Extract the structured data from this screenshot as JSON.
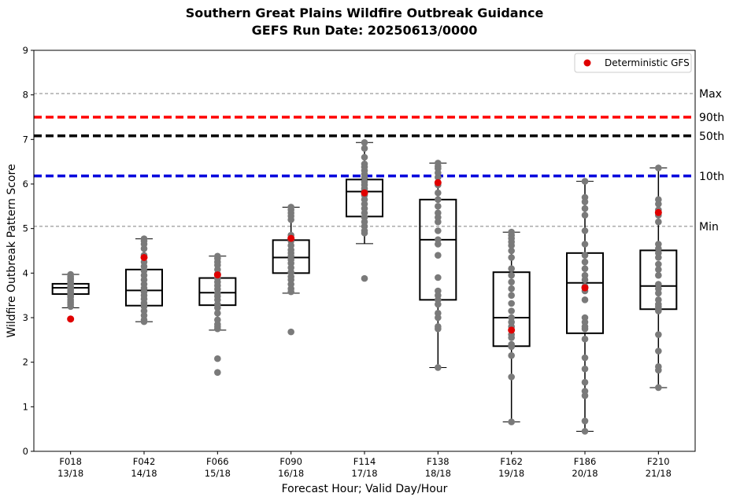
{
  "chart_data": {
    "type": "box",
    "title_line1": "Southern Great Plains Wildfire Outbreak Guidance",
    "title_line2": "GEFS Run Date: 20250613/0000",
    "xlabel": "Forecast Hour; Valid Day/Hour",
    "ylabel": "Wildfire Outbreak Pattern Score",
    "ylim": [
      0,
      9
    ],
    "yticks": [
      "0",
      "1",
      "2",
      "3",
      "4",
      "5",
      "6",
      "7",
      "8",
      "9"
    ],
    "grid": false,
    "legend": {
      "placement": "top-right",
      "entries": [
        {
          "label": "Deterministic GFS",
          "color": "#e00000"
        }
      ]
    },
    "categories": [
      {
        "hour": "F018",
        "valid": "13/18"
      },
      {
        "hour": "F042",
        "valid": "14/18"
      },
      {
        "hour": "F066",
        "valid": "15/18"
      },
      {
        "hour": "F090",
        "valid": "16/18"
      },
      {
        "hour": "F114",
        "valid": "17/18"
      },
      {
        "hour": "F138",
        "valid": "18/18"
      },
      {
        "hour": "F162",
        "valid": "19/18"
      },
      {
        "hour": "F186",
        "valid": "20/18"
      },
      {
        "hour": "F210",
        "valid": "21/18"
      }
    ],
    "reference_lines": [
      {
        "label": "Max",
        "value": 8.03,
        "color": "#808080",
        "style": "thin-dashed"
      },
      {
        "label": "90th",
        "value": 7.5,
        "color": "#ff0000",
        "style": "thick-dashed"
      },
      {
        "label": "50th",
        "value": 7.08,
        "color": "#000000",
        "style": "thick-dashed"
      },
      {
        "label": "10th",
        "value": 6.18,
        "color": "#0000dd",
        "style": "thick-dashed"
      },
      {
        "label": "Min",
        "value": 5.05,
        "color": "#808080",
        "style": "thin-dashed"
      }
    ],
    "boxes": [
      {
        "q1": 3.53,
        "median": 3.67,
        "q3": 3.76,
        "whisker_low": 3.22,
        "whisker_high": 3.97,
        "gfs": 2.97,
        "members": [
          3.97,
          3.92,
          3.88,
          3.85,
          3.8,
          3.75,
          3.7,
          3.66,
          3.62,
          3.58,
          3.55,
          3.5,
          3.46,
          3.4,
          3.35,
          3.3,
          3.25
        ]
      },
      {
        "q1": 3.27,
        "median": 3.61,
        "q3": 4.08,
        "whisker_low": 2.91,
        "whisker_high": 4.77,
        "gfs": 4.35,
        "members": [
          4.77,
          4.72,
          4.65,
          4.55,
          4.4,
          4.25,
          4.15,
          4.05,
          3.95,
          3.85,
          3.75,
          3.66,
          3.58,
          3.5,
          3.42,
          3.33,
          3.25,
          3.15,
          3.05,
          2.95,
          2.91
        ]
      },
      {
        "q1": 3.28,
        "median": 3.56,
        "q3": 3.89,
        "whisker_low": 2.72,
        "whisker_high": 4.38,
        "gfs": 3.96,
        "members": [
          4.38,
          4.33,
          4.25,
          4.18,
          4.08,
          3.98,
          3.88,
          3.8,
          3.72,
          3.64,
          3.55,
          3.48,
          3.4,
          3.3,
          3.22,
          3.1,
          2.95,
          2.85,
          2.8,
          2.75,
          2.08,
          1.77
        ]
      },
      {
        "q1": 4.0,
        "median": 4.35,
        "q3": 4.74,
        "whisker_low": 3.55,
        "whisker_high": 5.48,
        "gfs": 4.78,
        "members": [
          5.48,
          5.42,
          5.35,
          5.28,
          5.2,
          4.85,
          4.72,
          4.62,
          4.52,
          4.45,
          4.38,
          4.3,
          4.22,
          4.12,
          4.02,
          3.92,
          3.85,
          3.75,
          3.65,
          3.58,
          2.68
        ]
      },
      {
        "q1": 5.27,
        "median": 5.83,
        "q3": 6.1,
        "whisker_low": 4.66,
        "whisker_high": 6.93,
        "gfs": 5.8,
        "members": [
          6.93,
          6.8,
          6.6,
          6.45,
          6.38,
          6.3,
          6.22,
          6.15,
          6.05,
          5.98,
          5.9,
          5.85,
          5.75,
          5.65,
          5.55,
          5.45,
          5.35,
          5.25,
          5.15,
          5.05,
          4.95,
          4.9,
          3.88
        ]
      },
      {
        "q1": 3.4,
        "median": 4.75,
        "q3": 5.65,
        "whisker_low": 1.88,
        "whisker_high": 6.47,
        "gfs": 6.03,
        "members": [
          6.47,
          6.4,
          6.35,
          6.25,
          6.15,
          5.98,
          5.8,
          5.65,
          5.5,
          5.35,
          5.25,
          5.15,
          4.95,
          4.75,
          4.65,
          4.4,
          3.9,
          3.6,
          3.5,
          3.4,
          3.3,
          3.1,
          3.0,
          2.8,
          2.75,
          1.88
        ]
      },
      {
        "q1": 2.36,
        "median": 3.0,
        "q3": 4.02,
        "whisker_low": 0.66,
        "whisker_high": 4.92,
        "gfs": 2.72,
        "members": [
          4.92,
          4.85,
          4.78,
          4.7,
          4.62,
          4.5,
          4.35,
          4.1,
          3.95,
          3.8,
          3.65,
          3.5,
          3.32,
          3.15,
          3.0,
          2.9,
          2.8,
          2.62,
          2.55,
          2.4,
          2.35,
          2.15,
          1.67,
          0.66
        ]
      },
      {
        "q1": 2.65,
        "median": 3.78,
        "q3": 4.45,
        "whisker_low": 0.45,
        "whisker_high": 6.06,
        "gfs": 3.67,
        "members": [
          6.06,
          5.7,
          5.6,
          5.45,
          5.3,
          4.95,
          4.65,
          4.4,
          4.25,
          4.1,
          3.95,
          3.85,
          3.7,
          3.6,
          3.4,
          3.0,
          2.9,
          2.8,
          2.75,
          2.52,
          2.1,
          1.85,
          1.55,
          1.35,
          1.25,
          0.68,
          0.45
        ]
      },
      {
        "q1": 3.19,
        "median": 3.71,
        "q3": 4.51,
        "whisker_low": 1.43,
        "whisker_high": 6.36,
        "gfs": 5.36,
        "members": [
          6.36,
          5.65,
          5.55,
          5.42,
          5.3,
          5.15,
          4.65,
          4.55,
          4.45,
          4.35,
          4.2,
          4.08,
          3.95,
          3.75,
          3.65,
          3.55,
          3.4,
          3.3,
          3.25,
          3.2,
          3.15,
          2.62,
          2.25,
          1.9,
          1.82,
          1.43
        ]
      }
    ]
  }
}
